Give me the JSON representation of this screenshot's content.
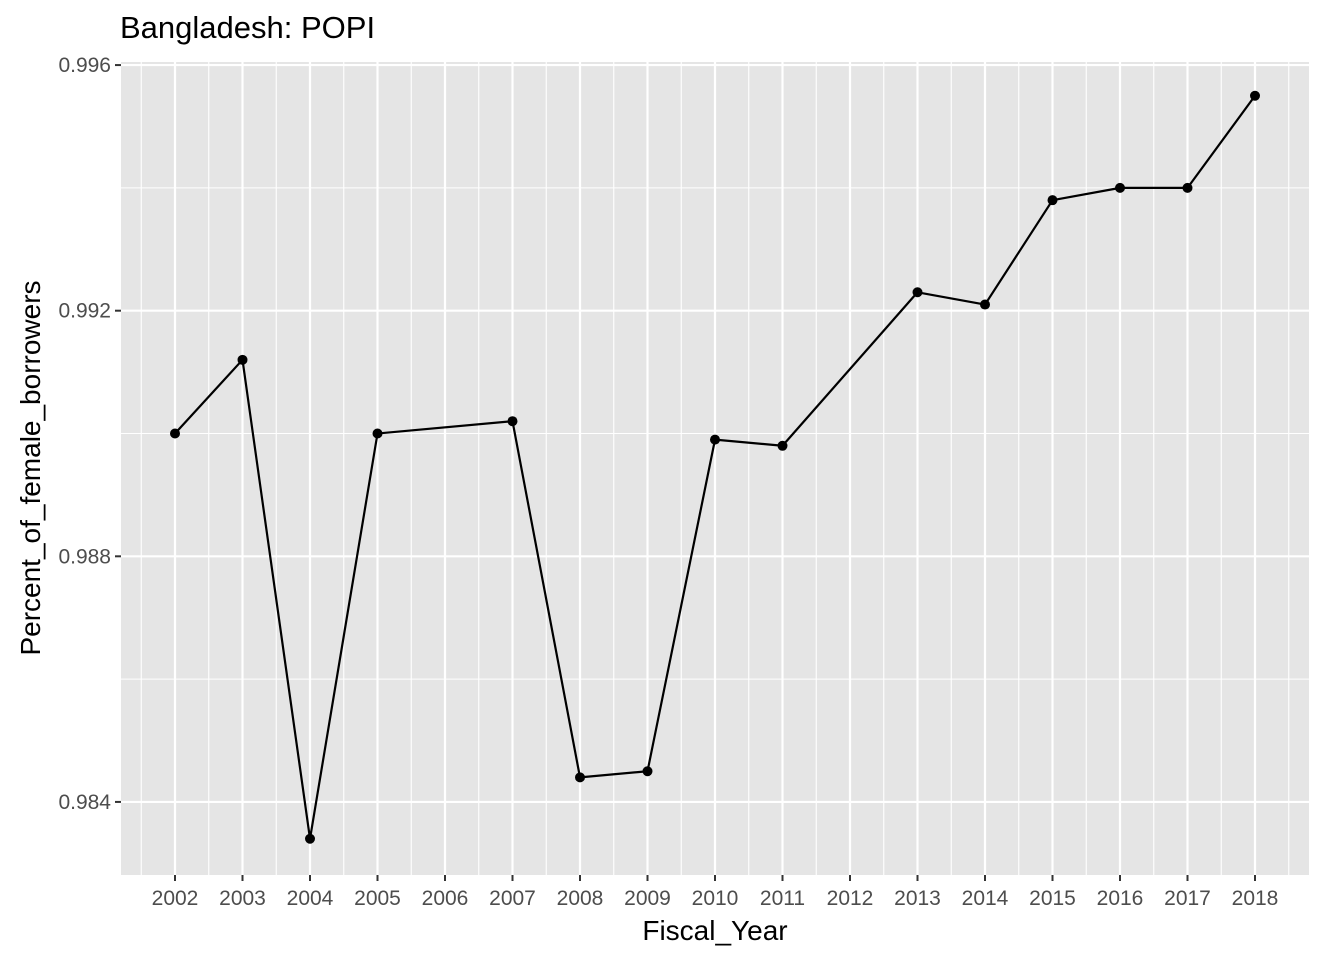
{
  "chart_data": {
    "type": "line",
    "title": "Bangladesh:  POPI",
    "xlabel": "Fiscal_Year",
    "ylabel": "Percent_of_female_borrowers",
    "x_ticks": [
      "2002",
      "2003",
      "2004",
      "2005",
      "2006",
      "2007",
      "2008",
      "2009",
      "2010",
      "2011",
      "2012",
      "2013",
      "2014",
      "2015",
      "2016",
      "2017",
      "2018"
    ],
    "y_ticks": [
      0.984,
      0.988,
      0.992,
      0.996
    ],
    "y_tick_labels": [
      "0.984",
      "0.988",
      "0.992",
      "0.996"
    ],
    "xlim": [
      2001.2,
      2018.8
    ],
    "ylim": [
      0.98281,
      0.99605
    ],
    "grid": true,
    "series": [
      {
        "color": "#000000",
        "points": [
          {
            "x": 2002,
            "y": 0.99
          },
          {
            "x": 2003,
            "y": 0.9912
          },
          {
            "x": 2004,
            "y": 0.9834
          },
          {
            "x": 2005,
            "y": 0.99
          },
          {
            "x": 2007,
            "y": 0.9902
          },
          {
            "x": 2008,
            "y": 0.9844
          },
          {
            "x": 2009,
            "y": 0.9845
          },
          {
            "x": 2010,
            "y": 0.9899
          },
          {
            "x": 2011,
            "y": 0.9898
          },
          {
            "x": 2013,
            "y": 0.9923
          },
          {
            "x": 2014,
            "y": 0.9921
          },
          {
            "x": 2015,
            "y": 0.9938
          },
          {
            "x": 2016,
            "y": 0.994
          },
          {
            "x": 2017,
            "y": 0.994
          },
          {
            "x": 2018,
            "y": 0.9955
          }
        ]
      }
    ]
  },
  "colors": {
    "panel_background": "#e5e5e5",
    "grid_line": "#ffffff",
    "tick_text": "#4d4d4d",
    "tick_mark": "#333333",
    "line": "#000000"
  }
}
